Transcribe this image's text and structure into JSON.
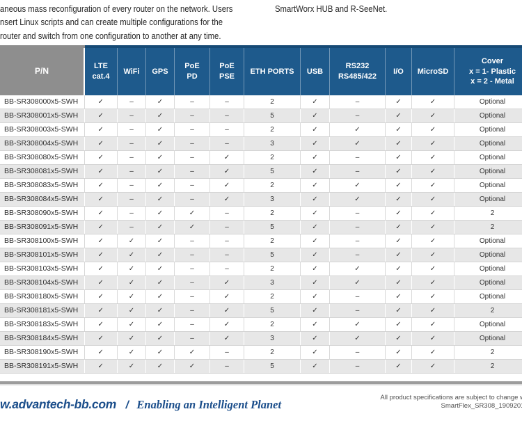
{
  "intro": {
    "left_lines": [
      "aneous mass reconfiguration of every router on the network. Users",
      "nsert Linux scripts and can create multiple configurations for the",
      "router and switch from one configuration to another at any time."
    ],
    "right_line": "SmartWorx HUB and R-SeeNet."
  },
  "table": {
    "columns": [
      {
        "label": "P/N"
      },
      {
        "label": "LTE\ncat.4"
      },
      {
        "label": "WiFi"
      },
      {
        "label": "GPS"
      },
      {
        "label": "PoE\nPD"
      },
      {
        "label": "PoE\nPSE"
      },
      {
        "label": "ETH PORTS"
      },
      {
        "label": "USB"
      },
      {
        "label": "RS232\nRS485/422"
      },
      {
        "label": "I/O"
      },
      {
        "label": "MicroSD"
      },
      {
        "label": "Cover\nx = 1- Plastic\nx = 2 - Metal"
      }
    ],
    "rows": [
      {
        "pn": "BB-SR308000x5-SWH",
        "cells": [
          "✓",
          "–",
          "✓",
          "–",
          "–",
          "2",
          "✓",
          "–",
          "✓",
          "✓",
          "Optional"
        ]
      },
      {
        "pn": "BB-SR308001x5-SWH",
        "cells": [
          "✓",
          "–",
          "✓",
          "–",
          "–",
          "5",
          "✓",
          "–",
          "✓",
          "✓",
          "Optional"
        ]
      },
      {
        "pn": "BB-SR308003x5-SWH",
        "cells": [
          "✓",
          "–",
          "✓",
          "–",
          "–",
          "2",
          "✓",
          "✓",
          "✓",
          "✓",
          "Optional"
        ]
      },
      {
        "pn": "BB-SR308004x5-SWH",
        "cells": [
          "✓",
          "–",
          "✓",
          "–",
          "–",
          "3",
          "✓",
          "✓",
          "✓",
          "✓",
          "Optional"
        ]
      },
      {
        "pn": "BB-SR308080x5-SWH",
        "cells": [
          "✓",
          "–",
          "✓",
          "–",
          "✓",
          "2",
          "✓",
          "–",
          "✓",
          "✓",
          "Optional"
        ]
      },
      {
        "pn": "BB-SR308081x5-SWH",
        "cells": [
          "✓",
          "–",
          "✓",
          "–",
          "✓",
          "5",
          "✓",
          "–",
          "✓",
          "✓",
          "Optional"
        ]
      },
      {
        "pn": "BB-SR308083x5-SWH",
        "cells": [
          "✓",
          "–",
          "✓",
          "–",
          "✓",
          "2",
          "✓",
          "✓",
          "✓",
          "✓",
          "Optional"
        ]
      },
      {
        "pn": "BB-SR308084x5-SWH",
        "cells": [
          "✓",
          "–",
          "✓",
          "–",
          "✓",
          "3",
          "✓",
          "✓",
          "✓",
          "✓",
          "Optional"
        ]
      },
      {
        "pn": "BB-SR308090x5-SWH",
        "cells": [
          "✓",
          "–",
          "✓",
          "✓",
          "–",
          "2",
          "✓",
          "–",
          "✓",
          "✓",
          "2"
        ]
      },
      {
        "pn": "BB-SR308091x5-SWH",
        "cells": [
          "✓",
          "–",
          "✓",
          "✓",
          "–",
          "5",
          "✓",
          "–",
          "✓",
          "✓",
          "2"
        ]
      },
      {
        "pn": "BB-SR308100x5-SWH",
        "cells": [
          "✓",
          "✓",
          "✓",
          "–",
          "–",
          "2",
          "✓",
          "–",
          "✓",
          "✓",
          "Optional"
        ]
      },
      {
        "pn": "BB-SR308101x5-SWH",
        "cells": [
          "✓",
          "✓",
          "✓",
          "–",
          "–",
          "5",
          "✓",
          "–",
          "✓",
          "✓",
          "Optional"
        ]
      },
      {
        "pn": "BB-SR308103x5-SWH",
        "cells": [
          "✓",
          "✓",
          "✓",
          "–",
          "–",
          "2",
          "✓",
          "✓",
          "✓",
          "✓",
          "Optional"
        ]
      },
      {
        "pn": "BB-SR308104x5-SWH",
        "cells": [
          "✓",
          "✓",
          "✓",
          "–",
          "✓",
          "3",
          "✓",
          "✓",
          "✓",
          "✓",
          "Optional"
        ]
      },
      {
        "pn": "BB-SR308180x5-SWH",
        "cells": [
          "✓",
          "✓",
          "✓",
          "–",
          "✓",
          "2",
          "✓",
          "–",
          "✓",
          "✓",
          "Optional"
        ]
      },
      {
        "pn": "BB-SR308181x5-SWH",
        "cells": [
          "✓",
          "✓",
          "✓",
          "–",
          "✓",
          "5",
          "✓",
          "–",
          "✓",
          "✓",
          "2"
        ]
      },
      {
        "pn": "BB-SR308183x5-SWH",
        "cells": [
          "✓",
          "✓",
          "✓",
          "–",
          "✓",
          "2",
          "✓",
          "✓",
          "✓",
          "✓",
          "Optional"
        ]
      },
      {
        "pn": "BB-SR308184x5-SWH",
        "cells": [
          "✓",
          "✓",
          "✓",
          "–",
          "✓",
          "3",
          "✓",
          "✓",
          "✓",
          "✓",
          "Optional"
        ]
      },
      {
        "pn": "BB-SR308190x5-SWH",
        "cells": [
          "✓",
          "✓",
          "✓",
          "✓",
          "–",
          "2",
          "✓",
          "–",
          "✓",
          "✓",
          "2"
        ]
      },
      {
        "pn": "BB-SR308191x5-SWH",
        "cells": [
          "✓",
          "✓",
          "✓",
          "✓",
          "–",
          "5",
          "✓",
          "–",
          "✓",
          "✓",
          "2"
        ]
      }
    ]
  },
  "footer": {
    "site": "w.advantech-bb.com",
    "separator": "/",
    "tagline": "Enabling an Intelligent Planet",
    "note_line1": "All product specifications are subject to change with",
    "note_line2": "SmartFlex_SR308_19092017d"
  },
  "colors": {
    "header_blue": "#1e5a8c",
    "header_blue_dark": "#164a75",
    "header_gray": "#8e8e8e",
    "row_stripe": "#e7e7e7",
    "footer_blue": "#1b4e8b"
  }
}
